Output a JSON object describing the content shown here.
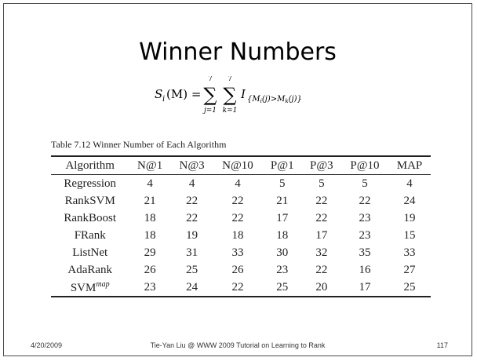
{
  "slide": {
    "title": "Winner Numbers",
    "formula": {
      "lhs": "S",
      "lhs_sub": "i",
      "lhs_arg": "(M) =",
      "sum1_upper": "7",
      "sum1_lower": "j=1",
      "sum2_upper": "7",
      "sum2_lower": "k=1",
      "indicator": "I",
      "indicator_sub": "{M",
      "indicator_sub_i": "i",
      "indicator_sub_mid": "(j)>M",
      "indicator_sub_k": "k",
      "indicator_sub_end": "(j)}"
    },
    "table": {
      "caption": "Table 7.12 Winner Number of Each Algorithm",
      "headers": [
        "Algorithm",
        "N@1",
        "N@3",
        "N@10",
        "P@1",
        "P@3",
        "P@10",
        "MAP"
      ],
      "rows": [
        {
          "algorithm": "Regression",
          "values": [
            "4",
            "4",
            "4",
            "5",
            "5",
            "5",
            "4"
          ]
        },
        {
          "algorithm": "RankSVM",
          "values": [
            "21",
            "22",
            "22",
            "21",
            "22",
            "22",
            "24"
          ]
        },
        {
          "algorithm": "RankBoost",
          "values": [
            "18",
            "22",
            "22",
            "17",
            "22",
            "23",
            "19"
          ]
        },
        {
          "algorithm": "FRank",
          "values": [
            "18",
            "19",
            "18",
            "18",
            "17",
            "23",
            "15"
          ]
        },
        {
          "algorithm": "ListNet",
          "values": [
            "29",
            "31",
            "33",
            "30",
            "32",
            "35",
            "33"
          ]
        },
        {
          "algorithm": "AdaRank",
          "values": [
            "26",
            "25",
            "26",
            "23",
            "22",
            "16",
            "27"
          ]
        },
        {
          "algorithm": "SVM",
          "algorithm_sup": "map",
          "values": [
            "23",
            "24",
            "22",
            "25",
            "20",
            "17",
            "25"
          ]
        }
      ]
    },
    "footer": {
      "date": "4/20/2009",
      "center": "Tie-Yan Liu @ WWW 2009 Tutorial on Learning to Rank",
      "page": "117"
    }
  }
}
